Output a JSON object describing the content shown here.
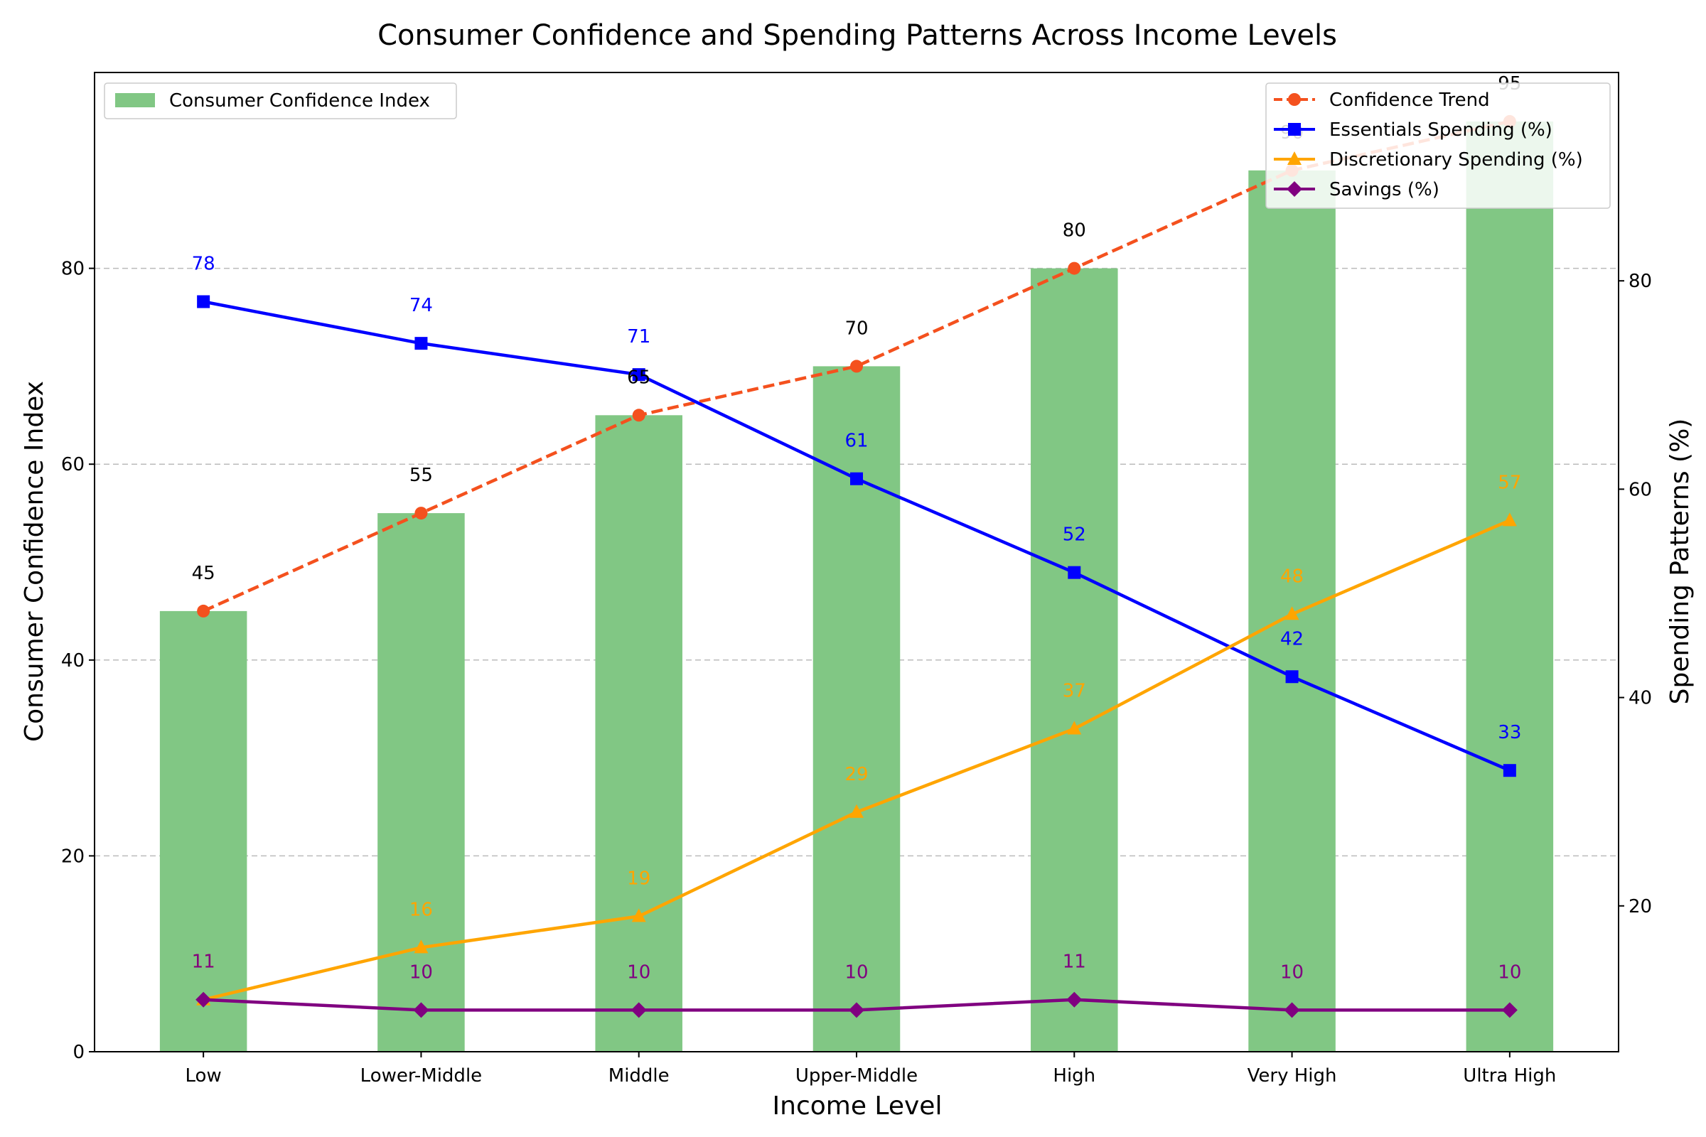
{
  "chart_data": {
    "type": "bar",
    "title": "Consumer Confidence and Spending Patterns Across Income Levels",
    "xlabel": "Income Level",
    "ylabel": "Consumer Confidence Index",
    "ylabel_right": "Spending Patterns (%)",
    "categories": [
      "Low",
      "Lower-Middle",
      "Middle",
      "Upper-Middle",
      "High",
      "Very High",
      "Ultra High"
    ],
    "ylim": [
      0,
      100
    ],
    "ylim_right": [
      6,
      100
    ],
    "yticks": [
      "0",
      "20",
      "40",
      "60",
      "80"
    ],
    "yticks_right": [
      "20",
      "40",
      "60",
      "80"
    ],
    "grid": "horizontal dashed",
    "bar_series": {
      "name": "Consumer Confidence Index",
      "values": [
        45,
        55,
        65,
        70,
        80,
        90,
        95
      ],
      "labels": [
        "45",
        "55",
        "65",
        "70",
        "80",
        "90",
        "95"
      ],
      "color": "#81c784"
    },
    "line_series": [
      {
        "name": "Confidence Trend",
        "axis": "left",
        "values": [
          45,
          55,
          65,
          70,
          80,
          90,
          95
        ],
        "color": "#f4511e",
        "marker": "circle",
        "dashed": true
      },
      {
        "name": "Essentials Spending (%)",
        "axis": "right",
        "values": [
          78,
          74,
          71,
          61,
          52,
          42,
          33
        ],
        "labels": [
          "78",
          "74",
          "71",
          "61",
          "52",
          "42",
          "33"
        ],
        "color": "#0000ff",
        "marker": "square",
        "dashed": false
      },
      {
        "name": "Discretionary Spending (%)",
        "axis": "right",
        "values": [
          11,
          16,
          19,
          29,
          37,
          48,
          57
        ],
        "labels": [
          "11",
          "16",
          "19",
          "29",
          "37",
          "48",
          "57"
        ],
        "color": "#ffa500",
        "marker": "triangle",
        "dashed": false
      },
      {
        "name": "Savings (%)",
        "axis": "right",
        "values": [
          11,
          10,
          10,
          10,
          11,
          10,
          10
        ],
        "labels": [
          "11",
          "10",
          "10",
          "10",
          "11",
          "10",
          "10"
        ],
        "color": "#800080",
        "marker": "diamond",
        "dashed": false
      }
    ],
    "legend_left": "top-left",
    "legend_right": "top-right"
  }
}
